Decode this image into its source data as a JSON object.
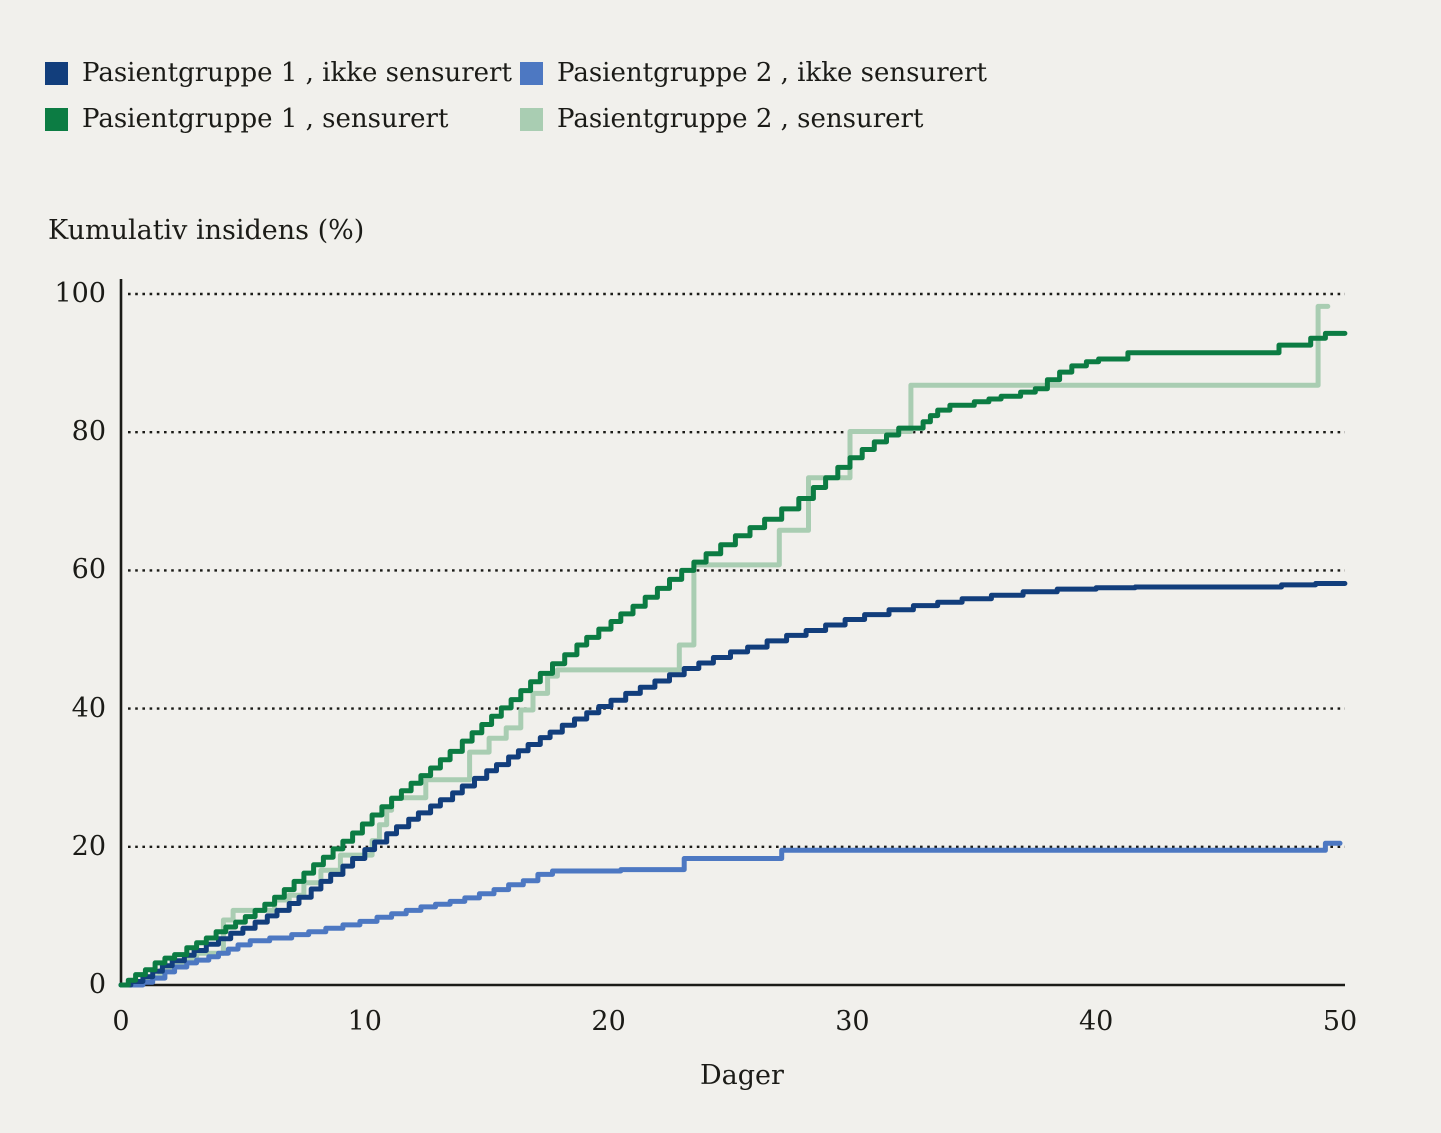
{
  "figure": {
    "background": "#f1f0ec",
    "text_color": "#1b1b17",
    "axis_color": "#1b1b17"
  },
  "legend": {
    "position": "top-left, two columns",
    "items": [
      {
        "label": "Pasientgruppe 1 , ikke sensurert",
        "color": "#123e7c"
      },
      {
        "label": "Pasientgruppe 1 , sensurert",
        "color": "#0c7c43"
      },
      {
        "label": "Pasientgruppe 2 , ikke sensurert",
        "color": "#4d78c2"
      },
      {
        "label": "Pasientgruppe 2 , sensurert",
        "color": "#a9cdb2"
      }
    ]
  },
  "chart_data": {
    "type": "line",
    "subtype": "step-after cumulative-incidence (Kaplan-Meier style)",
    "title": "",
    "ylabel": "Kumulativ insidens (%)",
    "xlabel": "Dager",
    "xlim": [
      0,
      50
    ],
    "ylim": [
      0,
      100
    ],
    "x_ticks": [
      0,
      10,
      20,
      30,
      40,
      50
    ],
    "y_ticks": [
      0,
      20,
      40,
      60,
      80,
      100
    ],
    "grid": "horizontal dotted lines at y = 20, 40, 60, 80, 100",
    "legend_position": "top-left",
    "series": [
      {
        "name": "Pasientgruppe 1, ikke sensurert",
        "color": "#123e7c",
        "end_day": 50.2,
        "points": [
          [
            0,
            0
          ],
          [
            0.4,
            0.5
          ],
          [
            0.9,
            1.2
          ],
          [
            1.3,
            2.0
          ],
          [
            1.7,
            2.8
          ],
          [
            2.1,
            3.5
          ],
          [
            2.6,
            4.3
          ],
          [
            3.0,
            5.0
          ],
          [
            3.5,
            5.9
          ],
          [
            4.0,
            6.7
          ],
          [
            4.5,
            7.5
          ],
          [
            5.0,
            8.2
          ],
          [
            5.5,
            9.1
          ],
          [
            6.0,
            10.0
          ],
          [
            6.4,
            10.8
          ],
          [
            6.9,
            11.8
          ],
          [
            7.3,
            12.7
          ],
          [
            7.8,
            13.9
          ],
          [
            8.2,
            15.0
          ],
          [
            8.6,
            16.0
          ],
          [
            9.1,
            17.2
          ],
          [
            9.5,
            18.3
          ],
          [
            10.0,
            19.6
          ],
          [
            10.4,
            20.7
          ],
          [
            10.9,
            21.9
          ],
          [
            11.3,
            22.9
          ],
          [
            11.8,
            24.0
          ],
          [
            12.2,
            24.9
          ],
          [
            12.7,
            25.9
          ],
          [
            13.1,
            26.8
          ],
          [
            13.6,
            27.8
          ],
          [
            14.0,
            28.8
          ],
          [
            14.5,
            29.9
          ],
          [
            15.0,
            31.0
          ],
          [
            15.4,
            31.9
          ],
          [
            15.9,
            33.0
          ],
          [
            16.3,
            33.9
          ],
          [
            16.7,
            34.8
          ],
          [
            17.2,
            35.8
          ],
          [
            17.6,
            36.6
          ],
          [
            18.1,
            37.6
          ],
          [
            18.6,
            38.5
          ],
          [
            19.1,
            39.4
          ],
          [
            19.6,
            40.3
          ],
          [
            20.1,
            41.2
          ],
          [
            20.7,
            42.2
          ],
          [
            21.3,
            43.1
          ],
          [
            21.9,
            44.0
          ],
          [
            22.5,
            44.9
          ],
          [
            23.1,
            45.8
          ],
          [
            23.7,
            46.6
          ],
          [
            24.3,
            47.4
          ],
          [
            25.0,
            48.2
          ],
          [
            25.7,
            48.9
          ],
          [
            26.5,
            49.8
          ],
          [
            27.3,
            50.6
          ],
          [
            28.1,
            51.3
          ],
          [
            28.9,
            52.1
          ],
          [
            29.7,
            52.9
          ],
          [
            30.5,
            53.6
          ],
          [
            31.5,
            54.3
          ],
          [
            32.5,
            54.9
          ],
          [
            33.5,
            55.4
          ],
          [
            34.5,
            55.9
          ],
          [
            35.7,
            56.4
          ],
          [
            37.0,
            56.9
          ],
          [
            38.4,
            57.3
          ],
          [
            40.0,
            57.5
          ],
          [
            41.6,
            57.6
          ],
          [
            47.6,
            57.9
          ],
          [
            49.0,
            58.1
          ]
        ]
      },
      {
        "name": "Pasientgruppe 1, sensurert",
        "color": "#0c7c43",
        "end_day": 50.2,
        "points": [
          [
            0,
            0
          ],
          [
            0.3,
            0.7
          ],
          [
            0.6,
            1.5
          ],
          [
            1.0,
            2.2
          ],
          [
            1.4,
            3.2
          ],
          [
            1.8,
            3.9
          ],
          [
            2.2,
            4.4
          ],
          [
            2.7,
            5.4
          ],
          [
            3.1,
            6.1
          ],
          [
            3.5,
            6.8
          ],
          [
            3.9,
            7.7
          ],
          [
            4.3,
            8.4
          ],
          [
            4.7,
            9.1
          ],
          [
            5.1,
            9.9
          ],
          [
            5.5,
            10.8
          ],
          [
            5.9,
            11.7
          ],
          [
            6.3,
            12.7
          ],
          [
            6.7,
            13.8
          ],
          [
            7.1,
            15.0
          ],
          [
            7.5,
            16.2
          ],
          [
            7.9,
            17.4
          ],
          [
            8.3,
            18.5
          ],
          [
            8.7,
            19.7
          ],
          [
            9.1,
            20.8
          ],
          [
            9.5,
            22.0
          ],
          [
            9.9,
            23.3
          ],
          [
            10.3,
            24.6
          ],
          [
            10.7,
            25.8
          ],
          [
            11.1,
            27.0
          ],
          [
            11.5,
            28.1
          ],
          [
            11.9,
            29.2
          ],
          [
            12.3,
            30.3
          ],
          [
            12.7,
            31.4
          ],
          [
            13.1,
            32.6
          ],
          [
            13.5,
            33.8
          ],
          [
            14.0,
            35.3
          ],
          [
            14.4,
            36.5
          ],
          [
            14.8,
            37.7
          ],
          [
            15.2,
            38.9
          ],
          [
            15.6,
            40.1
          ],
          [
            16.0,
            41.3
          ],
          [
            16.4,
            42.6
          ],
          [
            16.8,
            43.9
          ],
          [
            17.2,
            45.1
          ],
          [
            17.7,
            46.5
          ],
          [
            18.2,
            47.8
          ],
          [
            18.7,
            49.2
          ],
          [
            19.1,
            50.3
          ],
          [
            19.6,
            51.5
          ],
          [
            20.1,
            52.6
          ],
          [
            20.5,
            53.7
          ],
          [
            21.0,
            54.8
          ],
          [
            21.5,
            56.1
          ],
          [
            22.0,
            57.4
          ],
          [
            22.5,
            58.7
          ],
          [
            23.0,
            60.0
          ],
          [
            23.5,
            61.2
          ],
          [
            24.0,
            62.4
          ],
          [
            24.6,
            63.7
          ],
          [
            25.2,
            65.0
          ],
          [
            25.8,
            66.2
          ],
          [
            26.4,
            67.4
          ],
          [
            27.1,
            68.9
          ],
          [
            27.8,
            70.4
          ],
          [
            28.4,
            72.0
          ],
          [
            28.9,
            73.4
          ],
          [
            29.4,
            74.9
          ],
          [
            29.9,
            76.3
          ],
          [
            30.4,
            77.5
          ],
          [
            30.9,
            78.6
          ],
          [
            31.4,
            79.6
          ],
          [
            31.9,
            80.6
          ],
          [
            32.9,
            81.5
          ],
          [
            33.2,
            82.4
          ],
          [
            33.5,
            83.2
          ],
          [
            34.0,
            83.9
          ],
          [
            35.0,
            84.4
          ],
          [
            35.6,
            84.8
          ],
          [
            36.1,
            85.2
          ],
          [
            36.9,
            85.8
          ],
          [
            37.5,
            86.3
          ],
          [
            38.0,
            87.6
          ],
          [
            38.5,
            88.7
          ],
          [
            39.0,
            89.6
          ],
          [
            39.6,
            90.2
          ],
          [
            40.1,
            90.6
          ],
          [
            41.3,
            91.5
          ],
          [
            47.5,
            92.6
          ],
          [
            48.8,
            93.6
          ],
          [
            49.4,
            94.3
          ]
        ]
      },
      {
        "name": "Pasientgruppe 2, ikke sensurert",
        "color": "#4d78c2",
        "end_day": 50.0,
        "points": [
          [
            0,
            0
          ],
          [
            0.9,
            0.4
          ],
          [
            1.3,
            1.0
          ],
          [
            1.8,
            1.9
          ],
          [
            2.2,
            2.6
          ],
          [
            2.7,
            3.2
          ],
          [
            3.1,
            3.6
          ],
          [
            3.6,
            4.1
          ],
          [
            4.0,
            4.6
          ],
          [
            4.4,
            5.2
          ],
          [
            4.8,
            5.8
          ],
          [
            5.3,
            6.4
          ],
          [
            6.1,
            6.8
          ],
          [
            7.0,
            7.3
          ],
          [
            7.7,
            7.7
          ],
          [
            8.4,
            8.2
          ],
          [
            9.1,
            8.7
          ],
          [
            9.8,
            9.2
          ],
          [
            10.5,
            9.8
          ],
          [
            11.1,
            10.3
          ],
          [
            11.7,
            10.8
          ],
          [
            12.3,
            11.3
          ],
          [
            12.9,
            11.7
          ],
          [
            13.5,
            12.1
          ],
          [
            14.1,
            12.6
          ],
          [
            14.7,
            13.2
          ],
          [
            15.3,
            13.8
          ],
          [
            15.9,
            14.5
          ],
          [
            16.5,
            15.1
          ],
          [
            17.1,
            16.0
          ],
          [
            17.7,
            16.5
          ],
          [
            20.5,
            16.7
          ],
          [
            23.1,
            18.3
          ],
          [
            27.1,
            19.5
          ],
          [
            49.4,
            20.5
          ]
        ]
      },
      {
        "name": "Pasientgruppe 2, sensurert",
        "color": "#a9cdb2",
        "end_day": 49.5,
        "points": [
          [
            0,
            0
          ],
          [
            0.6,
            0.5
          ],
          [
            1.1,
            1.2
          ],
          [
            1.6,
            2.1
          ],
          [
            2.1,
            3.0
          ],
          [
            2.6,
            3.9
          ],
          [
            3.1,
            4.6
          ],
          [
            4.2,
            9.4
          ],
          [
            4.6,
            10.8
          ],
          [
            6.3,
            12.3
          ],
          [
            6.9,
            13.0
          ],
          [
            7.5,
            14.8
          ],
          [
            8.2,
            16.6
          ],
          [
            9.0,
            18.8
          ],
          [
            10.3,
            20.9
          ],
          [
            10.6,
            23.2
          ],
          [
            10.9,
            25.3
          ],
          [
            11.1,
            27.1
          ],
          [
            12.5,
            29.7
          ],
          [
            14.3,
            33.7
          ],
          [
            15.1,
            35.7
          ],
          [
            15.8,
            37.2
          ],
          [
            16.4,
            39.8
          ],
          [
            16.9,
            42.2
          ],
          [
            17.5,
            44.7
          ],
          [
            17.9,
            45.6
          ],
          [
            22.9,
            49.2
          ],
          [
            23.5,
            60.8
          ],
          [
            27.0,
            65.8
          ],
          [
            28.2,
            73.4
          ],
          [
            29.9,
            80.1
          ],
          [
            32.4,
            86.8
          ],
          [
            49.1,
            98.2
          ]
        ]
      }
    ]
  }
}
